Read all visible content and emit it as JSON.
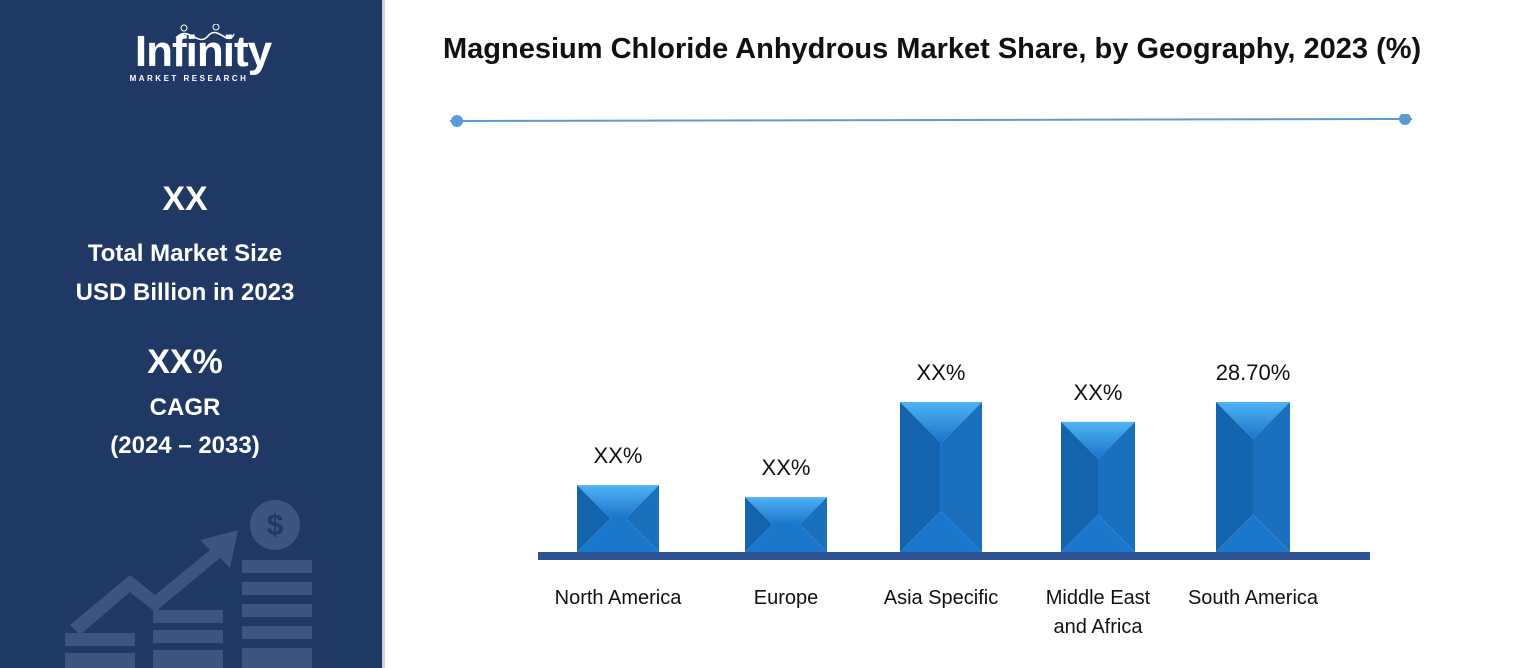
{
  "sidebar": {
    "logo_text": "Infinity",
    "logo_sub": "MARKET RESEARCH",
    "market_size_value": "XX",
    "market_size_label_1": "Total Market Size",
    "market_size_label_2": "USD Billion in 2023",
    "cagr_value": "XX%",
    "cagr_label": "CAGR",
    "cagr_period": "(2024 – 2033)"
  },
  "chart_data": {
    "type": "bar",
    "title": "Magnesium Chloride Anhydrous Market Share, by Geography, 2023 (%)",
    "categories": [
      "North America",
      "Europe",
      "Asia Specific",
      "Middle East and Africa",
      "South America"
    ],
    "values": [
      12.8,
      10.5,
      28.7,
      24.9,
      28.7
    ],
    "data_labels": [
      "XX%",
      "XX%",
      "XX%",
      "XX%",
      "28.70%"
    ],
    "ylim": [
      0,
      28.7
    ],
    "grid": false,
    "bar_color": "#1a75c8",
    "axis_color": "#2f5597"
  }
}
